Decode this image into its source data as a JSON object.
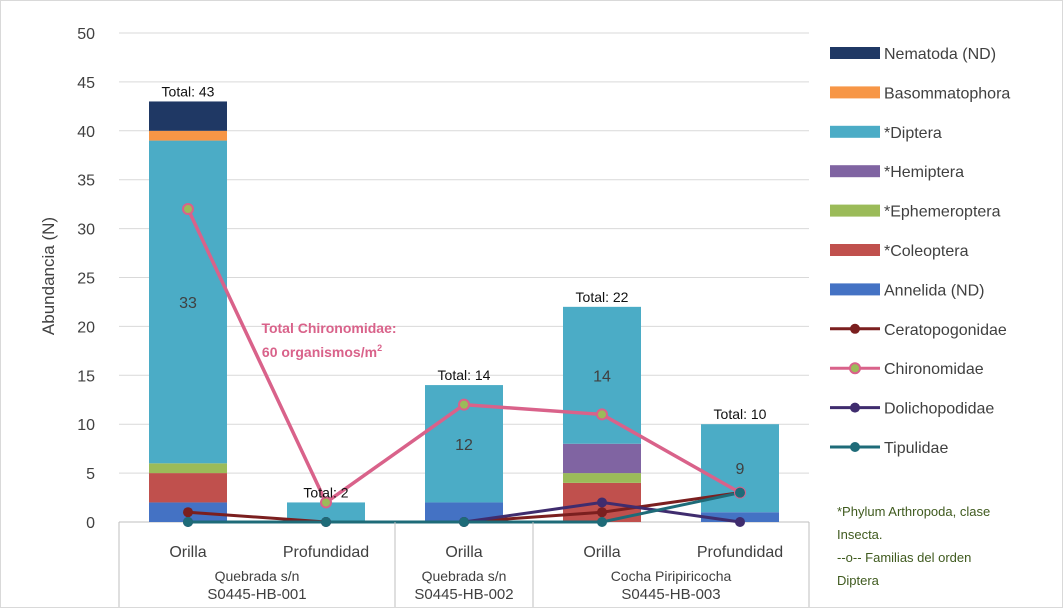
{
  "chart_data": {
    "type": "stacked bar + line",
    "ylabel": "Abundancia (N)",
    "ylim": [
      0,
      50
    ],
    "yticks": [
      0,
      5,
      10,
      15,
      20,
      25,
      30,
      35,
      40,
      45,
      50
    ],
    "grid": true,
    "legend_position": "right",
    "categories": [
      "Orilla",
      "Profundidad",
      "Orilla",
      "Orilla",
      "Profundidad"
    ],
    "groups": [
      {
        "label_line1": "Quebrada s/n",
        "label_line2": "S0445-HB-001",
        "span": [
          0,
          1
        ]
      },
      {
        "label_line1": "Quebrada s/n",
        "label_line2": "S0445-HB-002",
        "span": [
          2,
          2
        ]
      },
      {
        "label_line1": "Cocha Piripiricocha",
        "label_line2": "S0445-HB-003",
        "span": [
          3,
          4
        ]
      }
    ],
    "bar_series": [
      {
        "name": "Annelida (ND)",
        "color": "#4472c4",
        "values": [
          2,
          0,
          2,
          0,
          1
        ]
      },
      {
        "name": "*Coleoptera",
        "color": "#c0504d",
        "values": [
          3,
          0,
          0,
          4,
          0
        ]
      },
      {
        "name": "*Ephemeroptera",
        "color": "#9bbb59",
        "values": [
          1,
          0,
          0,
          1,
          0
        ]
      },
      {
        "name": "*Hemiptera",
        "color": "#8064a2",
        "values": [
          0,
          0,
          0,
          3,
          0
        ]
      },
      {
        "name": "*Diptera",
        "color": "#4bacc6",
        "values": [
          33,
          2,
          12,
          14,
          9
        ]
      },
      {
        "name": "Basommatophora",
        "color": "#f79646",
        "values": [
          1,
          0,
          0,
          0,
          0
        ]
      },
      {
        "name": "Nematoda (ND)",
        "color": "#1f3864",
        "values": [
          3,
          0,
          0,
          0,
          0
        ]
      }
    ],
    "line_series": [
      {
        "name": "Ceratopogonidae",
        "color": "#7b1f1f",
        "values": [
          1,
          0,
          0,
          1,
          3
        ]
      },
      {
        "name": "Chironomidae",
        "color": "#d9628a",
        "values": [
          32,
          2,
          12,
          11,
          3
        ]
      },
      {
        "name": "Dolichopodidae",
        "color": "#3f2c6e",
        "values": [
          0,
          0,
          0,
          2,
          0
        ]
      },
      {
        "name": "Tipulidae",
        "color": "#1e6b78",
        "values": [
          0,
          0,
          0,
          0,
          3
        ]
      }
    ],
    "totals": [
      "Total: 43",
      "Total: 2",
      "Total: 14",
      "Total: 22",
      "Total: 10"
    ],
    "diptera_value_labels": [
      "33",
      "",
      "12",
      "14",
      "9"
    ],
    "annotation": {
      "line1": "Total Chironomidae:",
      "line2": "60 organismos/m",
      "superscript": "2",
      "color": "#d9628a"
    },
    "footnote": [
      "*Phylum Arthropoda, clase",
      "Insecta.",
      "--o-- Familias del orden",
      "Diptera"
    ],
    "footnote_color": "#3f5a1e"
  }
}
